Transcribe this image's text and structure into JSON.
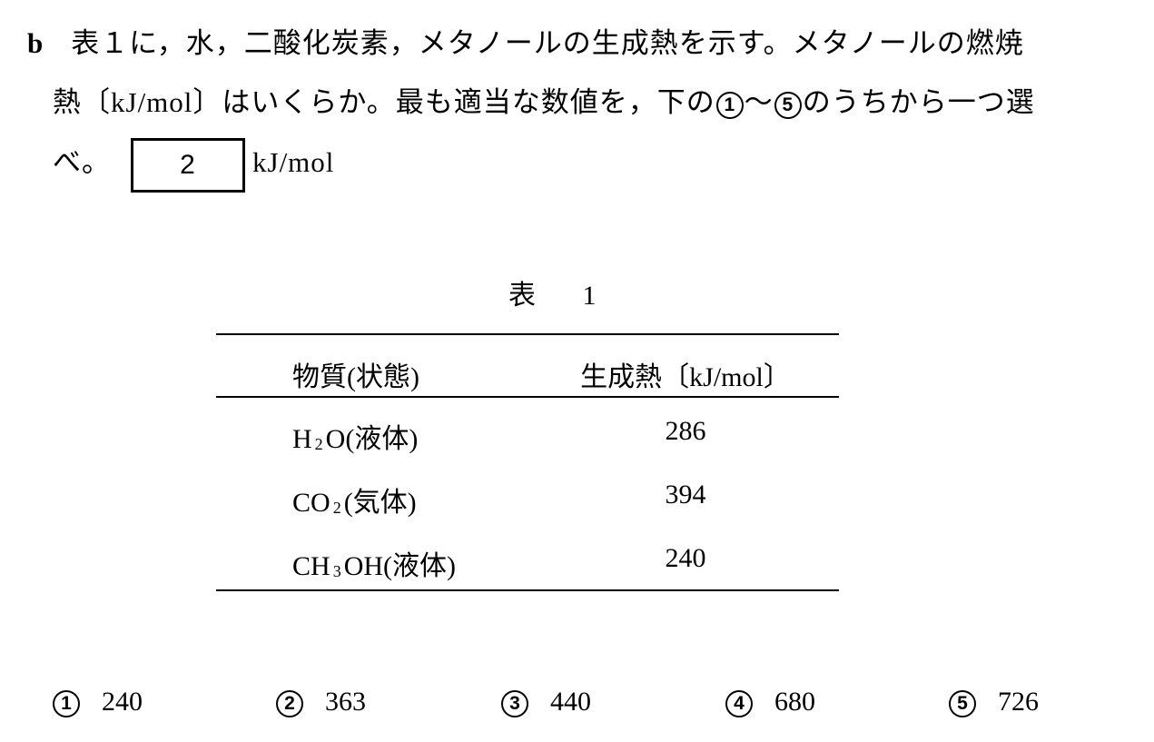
{
  "question": {
    "label": "b",
    "line1": "表１に，水，二酸化炭素，メタノールの生成熱を示す。メタノールの燃焼",
    "line2_a": "熱〔kJ/mol〕はいくらか。最も適当な数値を，下の",
    "range_start": "1",
    "range_sep": "～",
    "range_end": "5",
    "line2_b": "のうちから一つ選",
    "line3": "べ。",
    "answer_box": "2",
    "unit": "kJ/mol"
  },
  "table": {
    "caption": "表 1",
    "headers": [
      "物質(状態)",
      "生成熱〔kJ/mol〕"
    ],
    "rows": [
      {
        "pre": "H",
        "sub": "2",
        "post": "O(液体)",
        "value": "286"
      },
      {
        "pre": "CO",
        "sub": "2",
        "post": "(気体)",
        "value": "394"
      },
      {
        "pre": "CH",
        "sub": "3",
        "post": "OH(液体)",
        "value": "240"
      }
    ]
  },
  "options": [
    {
      "num": "1",
      "value": "240"
    },
    {
      "num": "2",
      "value": "363"
    },
    {
      "num": "3",
      "value": "440"
    },
    {
      "num": "4",
      "value": "680"
    },
    {
      "num": "5",
      "value": "726"
    }
  ]
}
